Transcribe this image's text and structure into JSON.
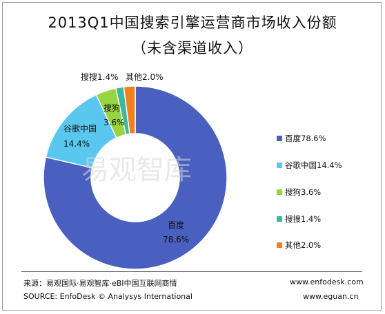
{
  "chart_data": {
    "type": "pie",
    "donut": true,
    "title": "2013Q1中国搜索引擎运营商市场收入份额",
    "subtitle": "（未含渠道收入）",
    "slices": [
      {
        "name": "百度",
        "value": 78.6,
        "color": "#4a60c0",
        "pct_label": "78.6%",
        "legend": "百度78.6%"
      },
      {
        "name": "谷歌中国",
        "value": 14.4,
        "color": "#5ac7ef",
        "pct_label": "14.4%",
        "legend": "谷歌中国14.4%"
      },
      {
        "name": "搜狗",
        "value": 3.6,
        "color": "#97d441",
        "pct_label": "3.6%",
        "legend": "搜狗3.6%"
      },
      {
        "name": "搜搜",
        "value": 1.4,
        "color": "#3fb69e",
        "pct_label": "1.4%",
        "legend": "搜搜1.4%"
      },
      {
        "name": "其他",
        "value": 2.0,
        "color": "#f08121",
        "pct_label": "2.0%",
        "legend": "其他2.0%"
      }
    ],
    "outside_labels": {
      "sousou": "搜搜1.4%",
      "other": "其他2.0%"
    },
    "legend_position": "right",
    "watermark": "易观智库"
  },
  "footer": {
    "source_cn": "来源：易观国际·易观智库·eBI中国互联网商情",
    "source_en": "SOURCE: EnfoDesk © Analysys International",
    "site_1": "www.enfodesk.com",
    "site_2": "www.eguan.cn"
  }
}
